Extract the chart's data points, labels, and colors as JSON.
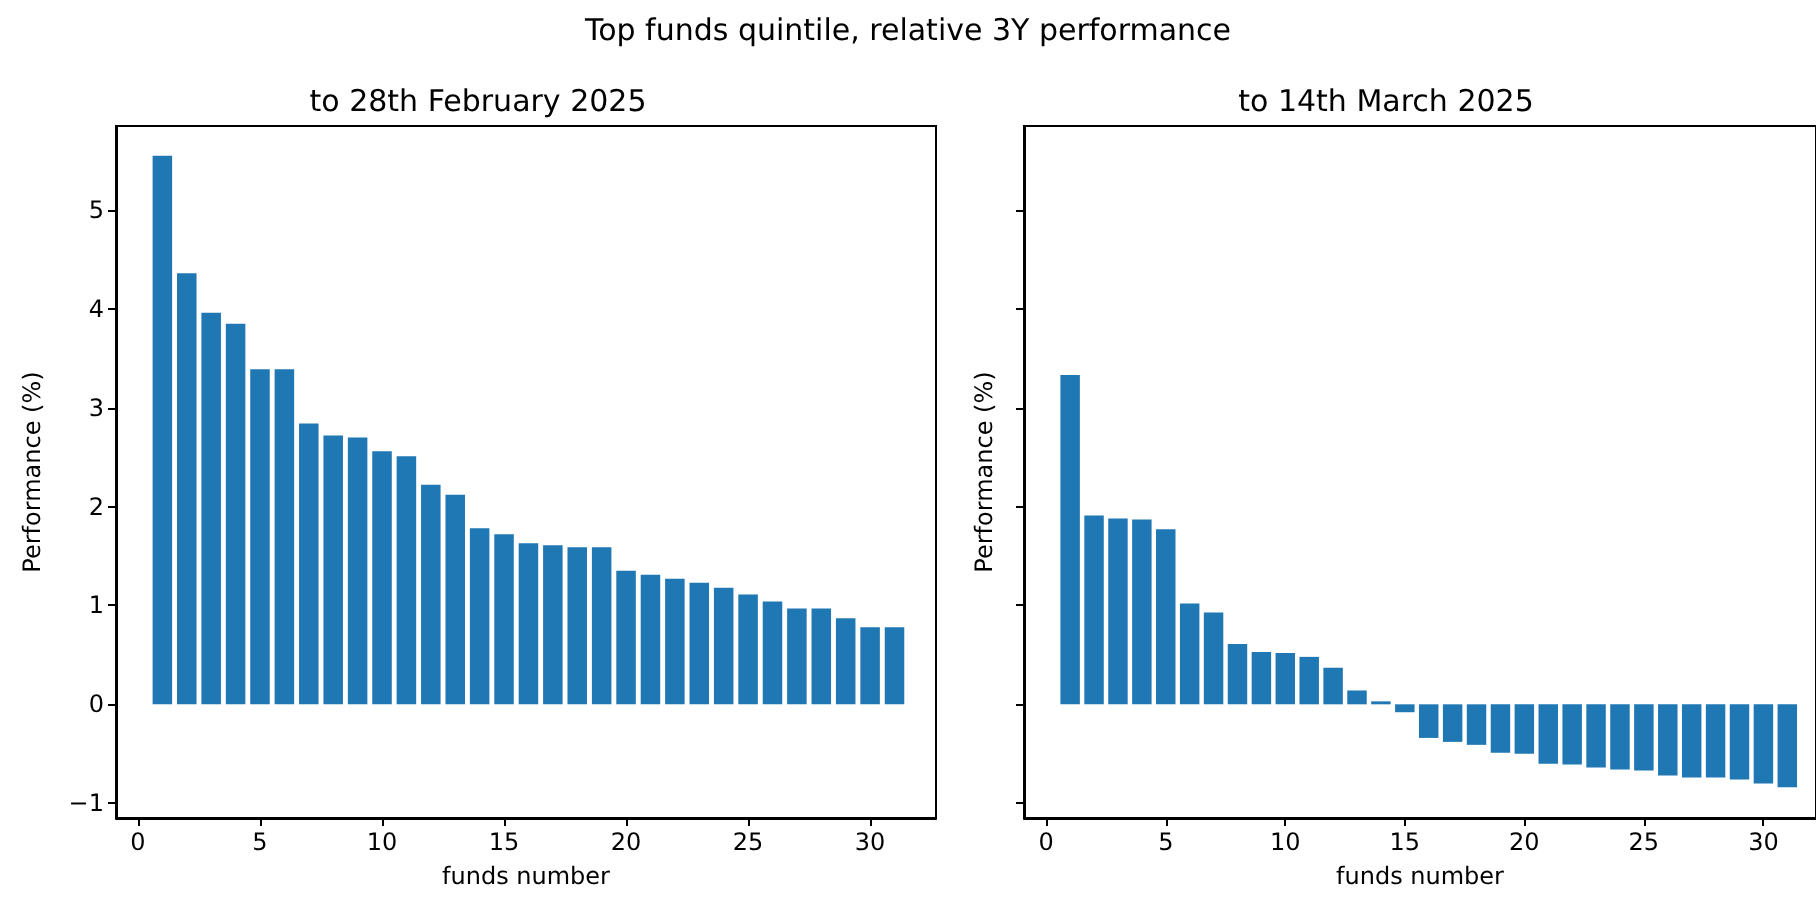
{
  "chart_data": [
    {
      "type": "bar",
      "title": "to 28th February 2025",
      "xlabel": "funds number",
      "ylabel": "Performance (%)",
      "annotations": [
        "Top funds quintile, relative 3Y performance"
      ],
      "x": [
        1,
        2,
        3,
        4,
        5,
        6,
        7,
        8,
        9,
        10,
        11,
        12,
        13,
        14,
        15,
        16,
        17,
        18,
        19,
        20,
        21,
        22,
        23,
        24,
        25,
        26,
        27,
        28,
        29,
        30,
        31
      ],
      "series": [
        {
          "color": "#1f77b4",
          "values": [
            5.55,
            4.36,
            3.96,
            3.85,
            3.39,
            3.39,
            2.84,
            2.72,
            2.7,
            2.56,
            2.51,
            2.22,
            2.12,
            1.78,
            1.72,
            1.63,
            1.61,
            1.59,
            1.59,
            1.35,
            1.31,
            1.27,
            1.23,
            1.18,
            1.11,
            1.04,
            0.97,
            0.97,
            0.87,
            0.78,
            0.78
          ]
        }
      ],
      "xlim": [
        -0.9,
        32.7
      ],
      "xticks": [
        0,
        5,
        10,
        15,
        20,
        25,
        30
      ],
      "ylim": [
        -1.15,
        5.85
      ],
      "yticks": [
        -1,
        0,
        1,
        2,
        3,
        4,
        5
      ],
      "grid": false
    },
    {
      "type": "bar",
      "title": "to 14th March 2025",
      "xlabel": "funds number",
      "ylabel": "Performance (%)",
      "x": [
        1,
        2,
        3,
        4,
        5,
        6,
        7,
        8,
        9,
        10,
        11,
        12,
        13,
        14,
        15,
        16,
        17,
        18,
        19,
        20,
        21,
        22,
        23,
        24,
        25,
        26,
        27,
        28,
        29,
        30,
        31
      ],
      "series": [
        {
          "color": "#1f77b4",
          "values": [
            3.33,
            1.91,
            1.88,
            1.87,
            1.77,
            1.02,
            0.93,
            0.61,
            0.53,
            0.52,
            0.48,
            0.37,
            0.14,
            0.03,
            -0.08,
            -0.34,
            -0.38,
            -0.41,
            -0.49,
            -0.5,
            -0.6,
            -0.61,
            -0.64,
            -0.66,
            -0.67,
            -0.72,
            -0.74,
            -0.74,
            -0.76,
            -0.8,
            -0.84
          ]
        }
      ],
      "xlim": [
        -0.93,
        32.2
      ],
      "xticks": [
        0,
        5,
        10,
        15,
        20,
        25,
        30
      ],
      "ylim": [
        -1.15,
        5.85
      ],
      "yticks": [
        -1,
        0,
        1,
        2,
        3,
        4,
        5
      ],
      "tick_labels": "x",
      "grid": false
    }
  ]
}
